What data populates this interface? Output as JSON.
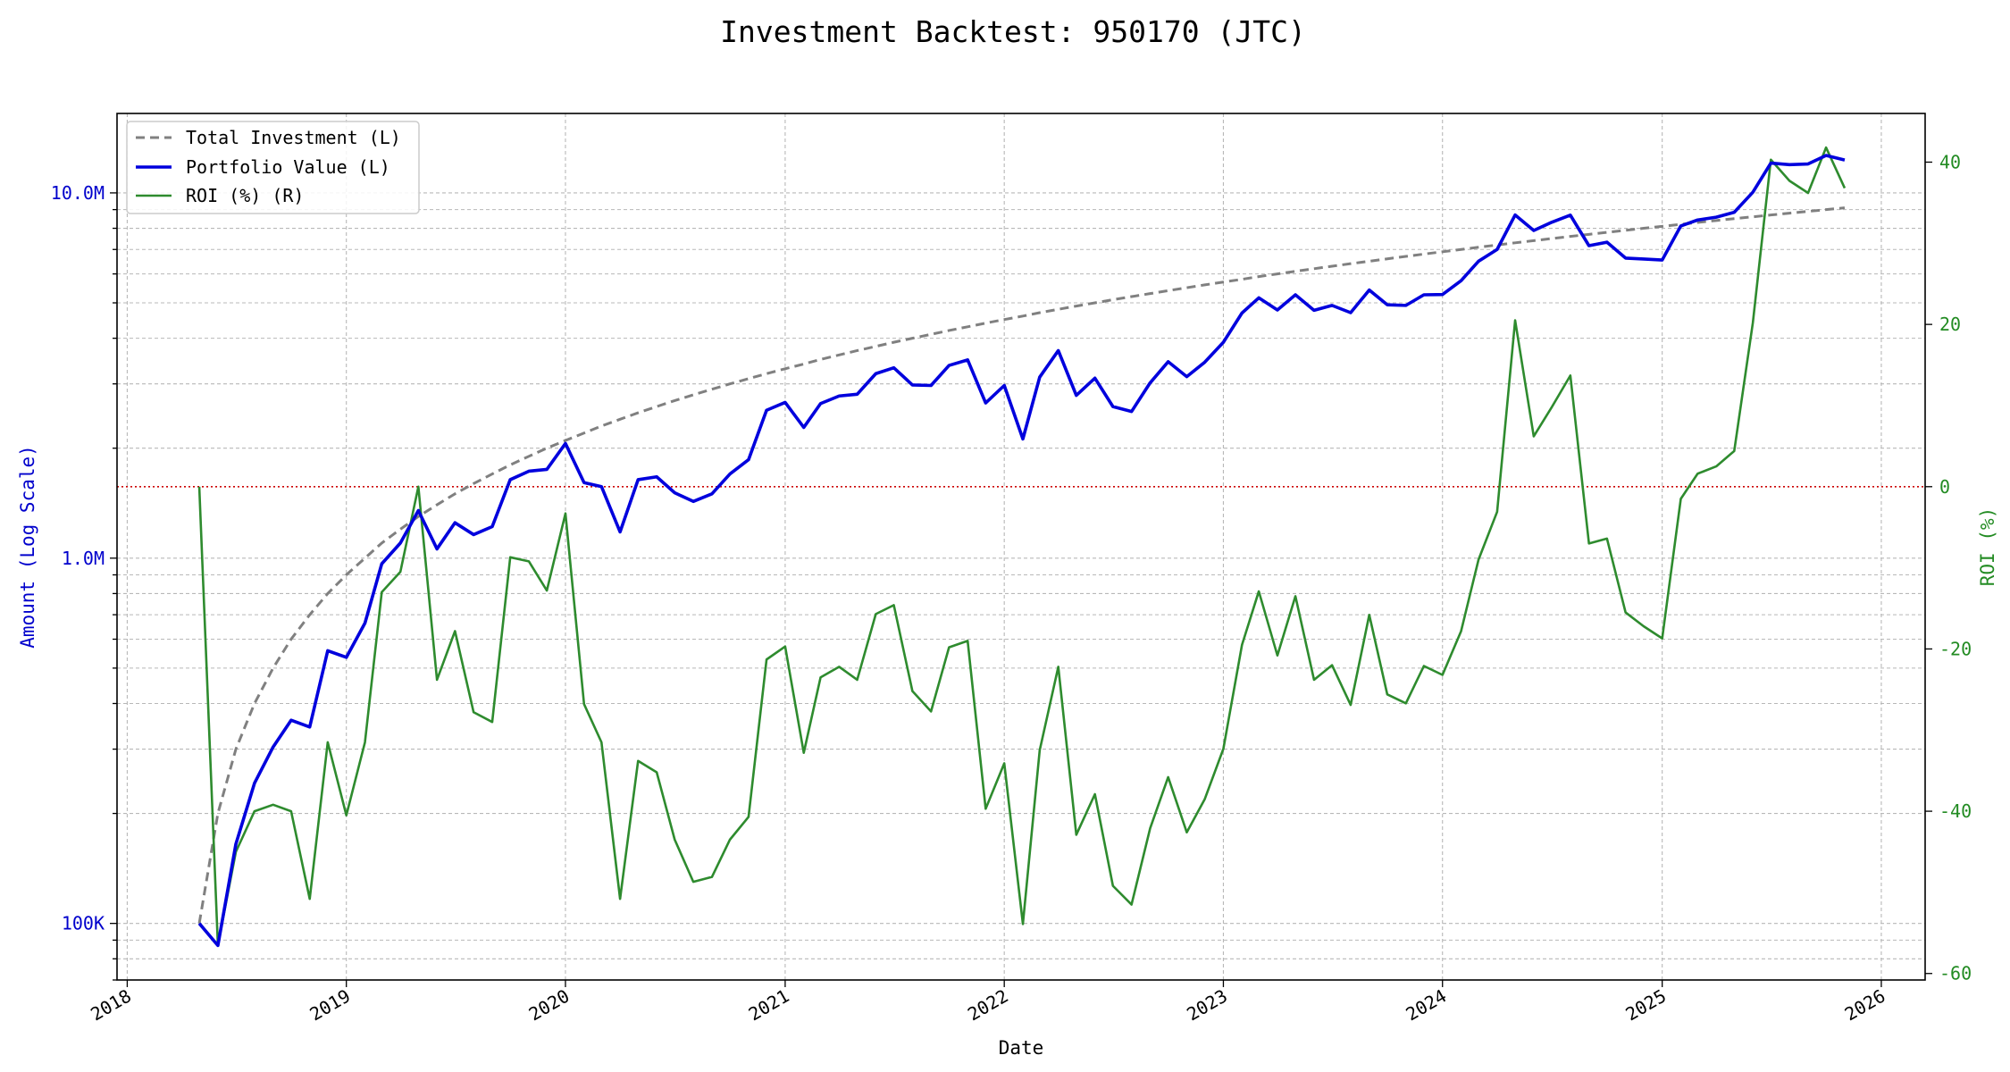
{
  "chart_data": {
    "type": "line",
    "title": "Investment Backtest: 950170 (JTC)",
    "xlabel": "Date",
    "ylabel_left": "Amount (Log Scale)",
    "ylabel_right": "ROI (%)",
    "left_axis": {
      "scale": "log",
      "range": [
        70000,
        16500000
      ],
      "ticks": [
        {
          "value": 100000,
          "label": "100K"
        },
        {
          "value": 1000000,
          "label": "1.0M"
        },
        {
          "value": 10000000,
          "label": "10.0M"
        }
      ]
    },
    "right_axis": {
      "scale": "linear",
      "range": [
        -60.8,
        46.0
      ],
      "ticks": [
        {
          "value": -60,
          "label": "-60"
        },
        {
          "value": -40,
          "label": "-40"
        },
        {
          "value": -20,
          "label": "-20"
        },
        {
          "value": 0,
          "label": "0"
        },
        {
          "value": 20,
          "label": "20"
        },
        {
          "value": 40,
          "label": "40"
        }
      ],
      "reference_line": 0
    },
    "x_axis": {
      "range": [
        "2017-12-15",
        "2026-03-15"
      ],
      "ticks": [
        "2018",
        "2019",
        "2020",
        "2021",
        "2022",
        "2023",
        "2024",
        "2025",
        "2026"
      ]
    },
    "grid": true,
    "legend": {
      "placement": "top-left",
      "entries": [
        {
          "label": "Total Investment (L)",
          "color": "#808080",
          "style": "dashed"
        },
        {
          "label": "Portfolio Value (L)",
          "color": "#0000dd",
          "style": "solid"
        },
        {
          "label": "ROI (%) (R)",
          "color": "#2e8b2e",
          "style": "solid"
        }
      ]
    },
    "colors": {
      "investment": "#808080",
      "portfolio": "#0000dd",
      "roi": "#2e8b2e",
      "zero_line": "#cc0000"
    },
    "dates": [
      "2018-05",
      "2018-06",
      "2018-07",
      "2018-08",
      "2018-09",
      "2018-10",
      "2018-11",
      "2018-12",
      "2019-01",
      "2019-02",
      "2019-03",
      "2019-04",
      "2019-05",
      "2019-06",
      "2019-07",
      "2019-08",
      "2019-09",
      "2019-10",
      "2019-11",
      "2019-12",
      "2020-01",
      "2020-02",
      "2020-03",
      "2020-04",
      "2020-05",
      "2020-06",
      "2020-07",
      "2020-08",
      "2020-09",
      "2020-10",
      "2020-11",
      "2020-12",
      "2021-01",
      "2021-02",
      "2021-03",
      "2021-04",
      "2021-05",
      "2021-06",
      "2021-07",
      "2021-08",
      "2021-09",
      "2021-10",
      "2021-11",
      "2021-12",
      "2022-01",
      "2022-02",
      "2022-03",
      "2022-04",
      "2022-05",
      "2022-06",
      "2022-07",
      "2022-08",
      "2022-09",
      "2022-10",
      "2022-11",
      "2022-12",
      "2023-01",
      "2023-02",
      "2023-03",
      "2023-04",
      "2023-05",
      "2023-06",
      "2023-07",
      "2023-08",
      "2023-09",
      "2023-10",
      "2023-11",
      "2023-12",
      "2024-01",
      "2024-02",
      "2024-03",
      "2024-04",
      "2024-05",
      "2024-06",
      "2024-07",
      "2024-08",
      "2024-09",
      "2024-10",
      "2024-11",
      "2024-12",
      "2025-01",
      "2025-02",
      "2025-03",
      "2025-04",
      "2025-05",
      "2025-06",
      "2025-07",
      "2025-08",
      "2025-09",
      "2025-10",
      "2025-11"
    ],
    "series": [
      {
        "name": "Total Investment (L)",
        "axis": "left",
        "values": [
          100000,
          200000,
          300000,
          400000,
          500000,
          600000,
          700000,
          800000,
          900000,
          1000000,
          1100000,
          1200000,
          1300000,
          1400000,
          1500000,
          1600000,
          1700000,
          1800000,
          1900000,
          2000000,
          2100000,
          2200000,
          2300000,
          2400000,
          2500000,
          2600000,
          2700000,
          2800000,
          2900000,
          3000000,
          3100000,
          3200000,
          3300000,
          3400000,
          3500000,
          3600000,
          3700000,
          3800000,
          3900000,
          4000000,
          4100000,
          4200000,
          4300000,
          4400000,
          4500000,
          4600000,
          4700000,
          4800000,
          4900000,
          5000000,
          5100000,
          5200000,
          5300000,
          5400000,
          5500000,
          5600000,
          5700000,
          5800000,
          5900000,
          6000000,
          6100000,
          6200000,
          6300000,
          6400000,
          6500000,
          6600000,
          6700000,
          6800000,
          6900000,
          7000000,
          7100000,
          7200000,
          7300000,
          7400000,
          7500000,
          7600000,
          7700000,
          7800000,
          7900000,
          8000000,
          8100000,
          8200000,
          8300000,
          8400000,
          8500000,
          8600000,
          8700000,
          8800000,
          8900000,
          9000000,
          9100000
        ]
      },
      {
        "name": "Portfolio Value (L)",
        "axis": "left",
        "values": [
          100000,
          87000,
          165000,
          242000,
          304000,
          360000,
          345000,
          558000,
          535000,
          664000,
          965000,
          1100000,
          1350000,
          1060000,
          1250000,
          1160000,
          1220000,
          1640000,
          1730000,
          1750000,
          2060000,
          1610000,
          1570000,
          1180000,
          1640000,
          1670000,
          1510000,
          1430000,
          1500000,
          1700000,
          1860000,
          2540000,
          2670000,
          2280000,
          2650000,
          2780000,
          2810000,
          3200000,
          3320000,
          2980000,
          2970000,
          3370000,
          3490000,
          2660000,
          2970000,
          2120000,
          3130000,
          3700000,
          2790000,
          3110000,
          2600000,
          2520000,
          3020000,
          3450000,
          3140000,
          3440000,
          3900000,
          4690000,
          5160000,
          4780000,
          5260000,
          4770000,
          4920000,
          4700000,
          5420000,
          4940000,
          4920000,
          5260000,
          5270000,
          5750000,
          6500000,
          7000000,
          8700000,
          7890000,
          8310000,
          8690000,
          7170000,
          7330000,
          6630000,
          6590000,
          6550000,
          8120000,
          8430000,
          8580000,
          8850000,
          10040000,
          12070000,
          11950000,
          12000000,
          12660000,
          12300000
        ]
      },
      {
        "name": "ROI (%) (R)",
        "axis": "right",
        "values": [
          0,
          -56.5,
          -45,
          -40,
          -39.2,
          -40,
          -50.8,
          -31.5,
          -40.5,
          -31.5,
          -13,
          -10.5,
          0,
          -23.8,
          -17.8,
          -27.8,
          -29,
          -8.7,
          -9.2,
          -12.8,
          -3.3,
          -26.8,
          -31.5,
          -50.8,
          -33.8,
          -35.2,
          -43.5,
          -48.7,
          -48.1,
          -43.5,
          -40.7,
          -21.3,
          -19.7,
          -32.8,
          -23.5,
          -22.2,
          -23.8,
          -15.7,
          -14.6,
          -25.2,
          -27.7,
          -19.8,
          -19,
          -39.7,
          -34.1,
          -53.9,
          -32.5,
          -22.2,
          -42.9,
          -37.9,
          -49.2,
          -51.5,
          -42.1,
          -35.8,
          -42.6,
          -38.5,
          -32.3,
          -19.5,
          -12.9,
          -20.8,
          -13.5,
          -23.8,
          -22,
          -26.9,
          -15.8,
          -25.6,
          -26.7,
          -22.1,
          -23.2,
          -17.8,
          -9,
          -3.1,
          20.5,
          6.2,
          9.8,
          13.7,
          -7,
          -6.4,
          -15.5,
          -17.2,
          -18.7,
          -1.5,
          1.6,
          2.5,
          4.4,
          20.2,
          40.3,
          37.7,
          36.2,
          41.8,
          36.8
        ]
      }
    ]
  }
}
